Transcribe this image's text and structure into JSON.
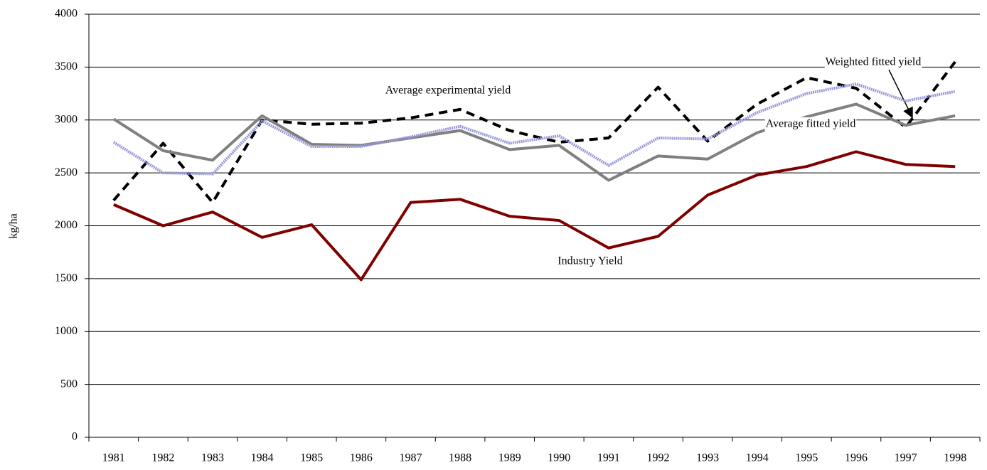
{
  "chart_data": {
    "type": "line",
    "y_label": "kg/ha",
    "categories": [
      "1981",
      "1982",
      "1983",
      "1984",
      "1985",
      "1986",
      "1987",
      "1988",
      "1989",
      "1990",
      "1991",
      "1992",
      "1993",
      "1994",
      "1995",
      "1996",
      "1997",
      "1998"
    ],
    "series": [
      {
        "name": "Industry Yield",
        "color": "#800000",
        "style": "solid",
        "values": [
          2200,
          2000,
          2130,
          1890,
          2010,
          1490,
          2220,
          2250,
          2090,
          2050,
          1790,
          1900,
          2290,
          2480,
          2560,
          2700,
          2580,
          2560
        ]
      },
      {
        "name": "Average experimental yield",
        "color": "#000000",
        "style": "dashed",
        "values": [
          2240,
          2780,
          2220,
          3000,
          2960,
          2970,
          3020,
          3100,
          2900,
          2790,
          2830,
          3310,
          2800,
          3150,
          3400,
          3300,
          2930,
          3550
        ]
      },
      {
        "name": "Average fitted yield",
        "color": "#808080",
        "style": "solid",
        "values": [
          3010,
          2710,
          2620,
          3040,
          2770,
          2760,
          2830,
          2900,
          2720,
          2760,
          2430,
          2660,
          2630,
          2880,
          3030,
          3150,
          2950,
          3040
        ]
      },
      {
        "name": "Weighted fitted yield",
        "color": "#9999dd",
        "style": "dotted",
        "values": [
          2790,
          2500,
          2490,
          2990,
          2750,
          2750,
          2840,
          2940,
          2780,
          2850,
          2570,
          2830,
          2820,
          3070,
          3250,
          3340,
          3180,
          3270
        ]
      }
    ],
    "ylim": [
      0,
      4000
    ],
    "yticks": [
      0,
      500,
      1000,
      1500,
      2000,
      2500,
      3000,
      3500,
      4000
    ],
    "grid": true
  }
}
